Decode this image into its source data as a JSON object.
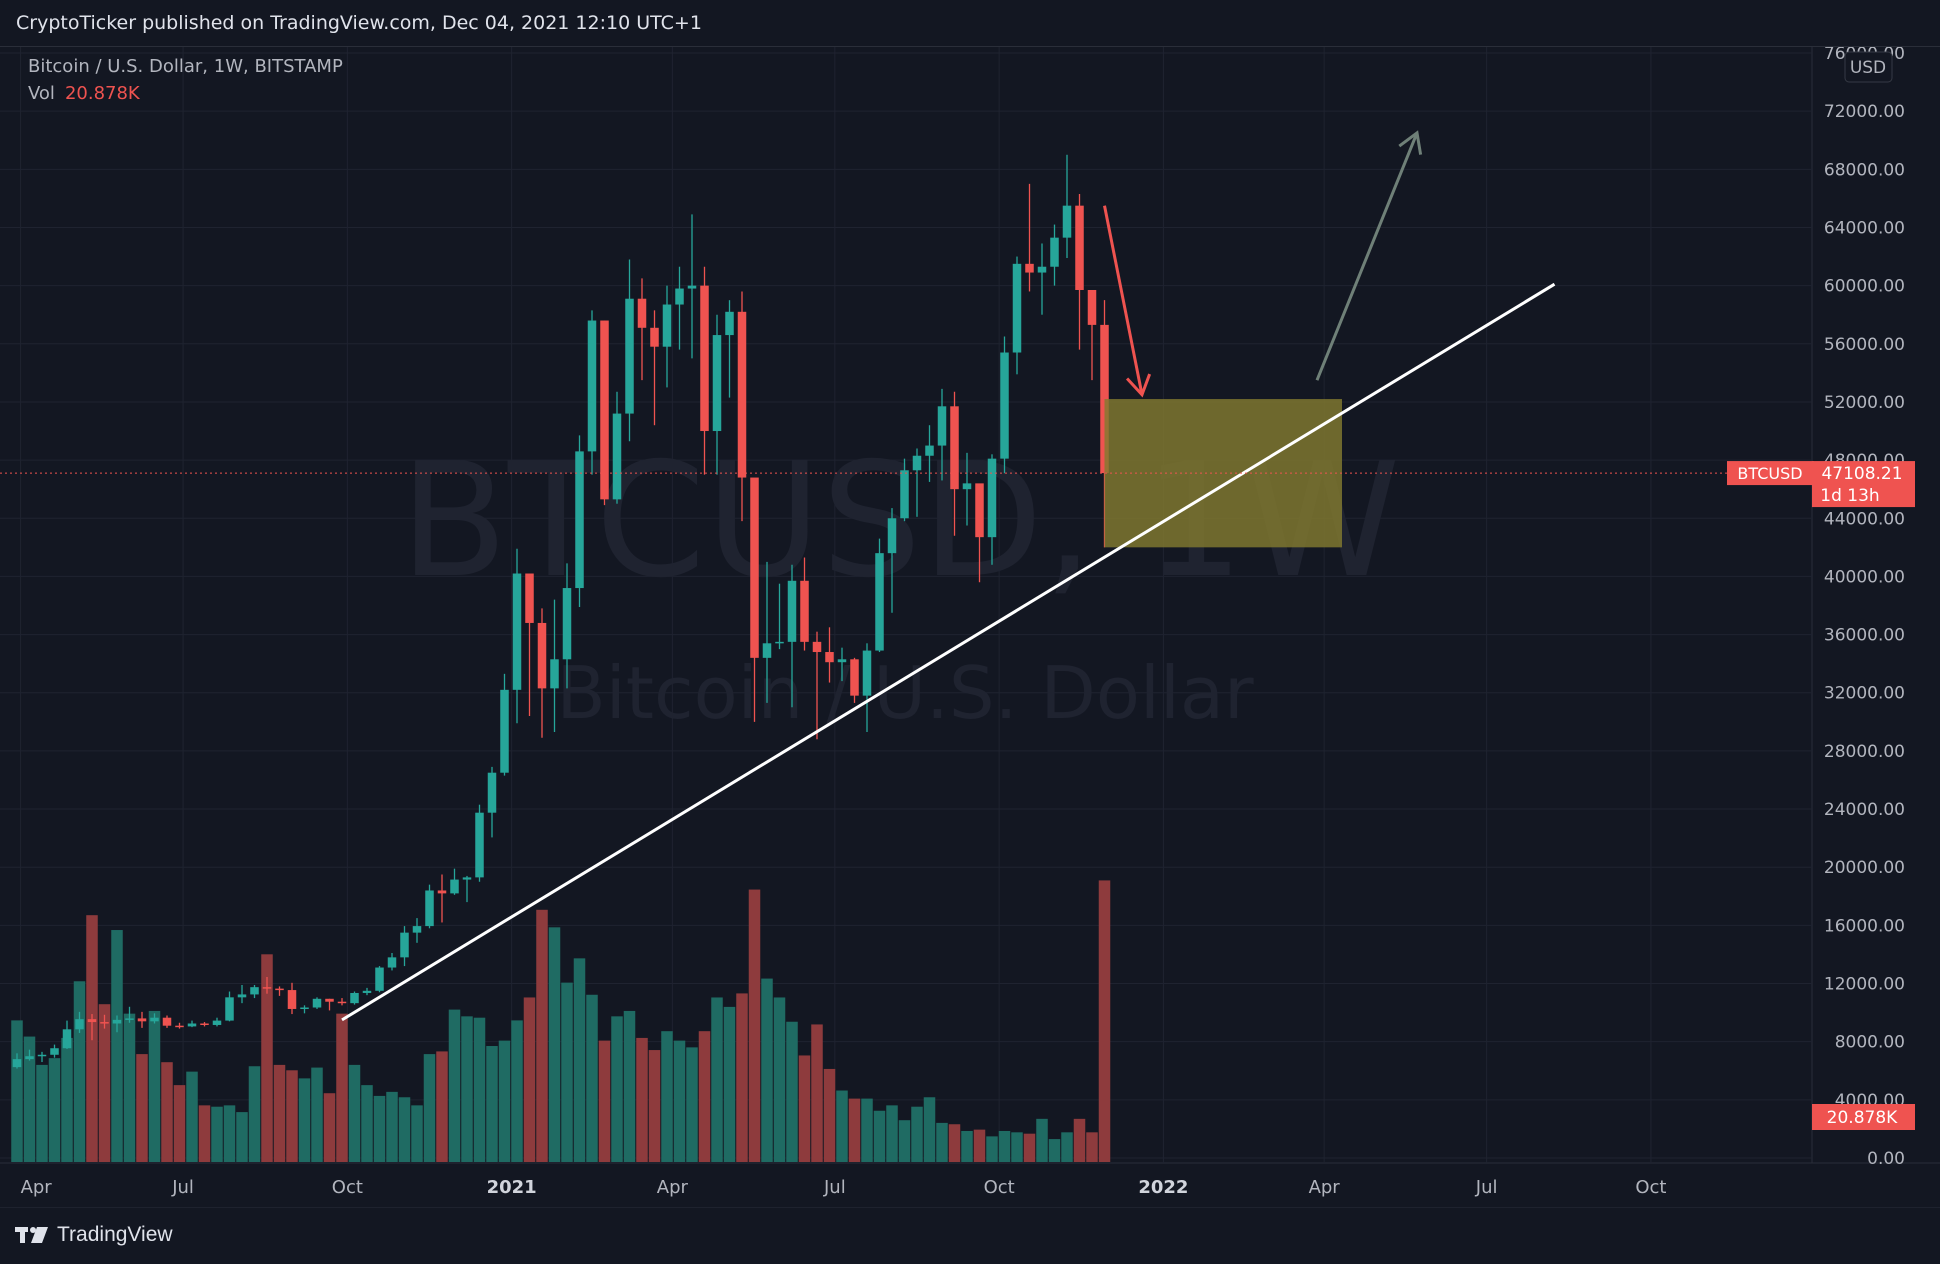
{
  "header": {
    "published_line": "CryptoTicker published on TradingView.com, Dec 04, 2021 12:10 UTC+1"
  },
  "legend": {
    "title": "Bitcoin / U.S. Dollar, 1W, BITSTAMP",
    "vol_label": "Vol",
    "vol_value": "20.878K"
  },
  "watermark": {
    "symbol": "BTCUSD, 1W",
    "name": "Bitcoin / U.S. Dollar"
  },
  "price_scale": {
    "currency": "USD",
    "ticks": [
      "76000.00",
      "72000.00",
      "68000.00",
      "64000.00",
      "60000.00",
      "56000.00",
      "52000.00",
      "48000.00",
      "44000.00",
      "40000.00",
      "36000.00",
      "32000.00",
      "28000.00",
      "24000.00",
      "20000.00",
      "16000.00",
      "12000.00",
      "8000.00",
      "4000.00",
      "0.00"
    ]
  },
  "time_scale": {
    "labels": [
      {
        "text": "Apr",
        "bold": false
      },
      {
        "text": "Jul",
        "bold": false
      },
      {
        "text": "Oct",
        "bold": false
      },
      {
        "text": "2021",
        "bold": true
      },
      {
        "text": "Apr",
        "bold": false
      },
      {
        "text": "Jul",
        "bold": false
      },
      {
        "text": "Oct",
        "bold": false
      },
      {
        "text": "2022",
        "bold": true
      },
      {
        "text": "Apr",
        "bold": false
      },
      {
        "text": "Jul",
        "bold": false
      },
      {
        "text": "Oct",
        "bold": false
      }
    ]
  },
  "last_price": {
    "symbol": "BTCUSD",
    "price": "47108.21",
    "countdown": "1d 13h",
    "volume": "20.878K"
  },
  "footer": {
    "brand": "TradingView"
  },
  "colors": {
    "up": "#26a69a",
    "down": "#ef5350",
    "vol_up": "#1f6b63",
    "vol_down": "#8e3b3d",
    "background": "#131722",
    "grid": "#1f2330",
    "zone": "#827a2f",
    "trendline": "#ffffff",
    "arrow_down": "#ef5350",
    "arrow_up": "#6f8078"
  },
  "chart_data": {
    "type": "candlestick",
    "symbol": "BTCUSD",
    "timeframe": "1W",
    "exchange": "BITSTAMP",
    "x_range": [
      "2020-03-30",
      "2022-11-21"
    ],
    "ylim": [
      0,
      76000
    ],
    "grid": true,
    "candles": [
      {
        "date": "2020-03-30",
        "open": 6250,
        "high": 7200,
        "low": 6150,
        "close": 6800,
        "volume": 10500
      },
      {
        "date": "2020-04-06",
        "open": 6800,
        "high": 7450,
        "low": 6700,
        "close": 7000,
        "volume": 9300
      },
      {
        "date": "2020-04-13",
        "open": 7000,
        "high": 7300,
        "low": 6600,
        "close": 7100,
        "volume": 7200
      },
      {
        "date": "2020-04-20",
        "open": 7100,
        "high": 7800,
        "low": 6900,
        "close": 7550,
        "volume": 7700
      },
      {
        "date": "2020-04-27",
        "open": 7550,
        "high": 9450,
        "low": 7500,
        "close": 8850,
        "volume": 9200
      },
      {
        "date": "2020-05-04",
        "open": 8850,
        "high": 10050,
        "low": 8600,
        "close": 9550,
        "volume": 13400
      },
      {
        "date": "2020-05-11",
        "open": 9550,
        "high": 9900,
        "low": 8100,
        "close": 9350,
        "volume": 18300
      },
      {
        "date": "2020-05-18",
        "open": 9350,
        "high": 9850,
        "low": 8900,
        "close": 9250,
        "volume": 11700
      },
      {
        "date": "2020-05-25",
        "open": 9250,
        "high": 9800,
        "low": 8650,
        "close": 9500,
        "volume": 17200
      },
      {
        "date": "2020-06-01",
        "open": 9500,
        "high": 10400,
        "low": 9300,
        "close": 9600,
        "volume": 11000
      },
      {
        "date": "2020-06-08",
        "open": 9600,
        "high": 10050,
        "low": 8950,
        "close": 9400,
        "volume": 8000
      },
      {
        "date": "2020-06-15",
        "open": 9400,
        "high": 9950,
        "low": 9250,
        "close": 9650,
        "volume": 11200
      },
      {
        "date": "2020-06-22",
        "open": 9650,
        "high": 9800,
        "low": 8950,
        "close": 9100,
        "volume": 7400
      },
      {
        "date": "2020-06-29",
        "open": 9100,
        "high": 9300,
        "low": 8900,
        "close": 9050,
        "volume": 5700
      },
      {
        "date": "2020-07-06",
        "open": 9050,
        "high": 9450,
        "low": 9000,
        "close": 9250,
        "volume": 6700
      },
      {
        "date": "2020-07-13",
        "open": 9250,
        "high": 9350,
        "low": 9050,
        "close": 9150,
        "volume": 4200
      },
      {
        "date": "2020-07-20",
        "open": 9150,
        "high": 9650,
        "low": 9050,
        "close": 9450,
        "volume": 4100
      },
      {
        "date": "2020-07-27",
        "open": 9450,
        "high": 11450,
        "low": 9400,
        "close": 11050,
        "volume": 4200
      },
      {
        "date": "2020-08-03",
        "open": 11050,
        "high": 11900,
        "low": 10650,
        "close": 11250,
        "volume": 3700
      },
      {
        "date": "2020-08-10",
        "open": 11250,
        "high": 11900,
        "low": 11000,
        "close": 11750,
        "volume": 7100
      },
      {
        "date": "2020-08-17",
        "open": 11750,
        "high": 12450,
        "low": 11300,
        "close": 11650,
        "volume": 15400
      },
      {
        "date": "2020-08-24",
        "open": 11650,
        "high": 11800,
        "low": 11150,
        "close": 11550,
        "volume": 7200
      },
      {
        "date": "2020-08-31",
        "open": 11550,
        "high": 12050,
        "low": 9900,
        "close": 10250,
        "volume": 6800
      },
      {
        "date": "2020-09-07",
        "open": 10250,
        "high": 10500,
        "low": 9950,
        "close": 10350,
        "volume": 6200
      },
      {
        "date": "2020-09-14",
        "open": 10350,
        "high": 11050,
        "low": 10250,
        "close": 10950,
        "volume": 7000
      },
      {
        "date": "2020-09-21",
        "open": 10950,
        "high": 10950,
        "low": 10150,
        "close": 10750,
        "volume": 5100
      },
      {
        "date": "2020-09-28",
        "open": 10750,
        "high": 11000,
        "low": 10500,
        "close": 10650,
        "volume": 11000
      },
      {
        "date": "2020-10-05",
        "open": 10650,
        "high": 11450,
        "low": 10550,
        "close": 11350,
        "volume": 7200
      },
      {
        "date": "2020-10-12",
        "open": 11350,
        "high": 11700,
        "low": 11200,
        "close": 11500,
        "volume": 5700
      },
      {
        "date": "2020-10-19",
        "open": 11500,
        "high": 13200,
        "low": 11400,
        "close": 13100,
        "volume": 4900
      },
      {
        "date": "2020-10-26",
        "open": 13100,
        "high": 14100,
        "low": 12900,
        "close": 13800,
        "volume": 5200
      },
      {
        "date": "2020-11-02",
        "open": 13800,
        "high": 15950,
        "low": 13200,
        "close": 15500,
        "volume": 4800
      },
      {
        "date": "2020-11-09",
        "open": 15500,
        "high": 16500,
        "low": 14800,
        "close": 15950,
        "volume": 4200
      },
      {
        "date": "2020-11-16",
        "open": 15950,
        "high": 18800,
        "low": 15800,
        "close": 18400,
        "volume": 8000
      },
      {
        "date": "2020-11-23",
        "open": 18400,
        "high": 19500,
        "low": 16200,
        "close": 18200,
        "volume": 8200
      },
      {
        "date": "2020-11-30",
        "open": 18200,
        "high": 19900,
        "low": 18100,
        "close": 19150,
        "volume": 11300
      },
      {
        "date": "2020-12-07",
        "open": 19150,
        "high": 19400,
        "low": 17600,
        "close": 19300,
        "volume": 10800
      },
      {
        "date": "2020-12-14",
        "open": 19300,
        "high": 24300,
        "low": 19000,
        "close": 23750,
        "volume": 10700
      },
      {
        "date": "2020-12-21",
        "open": 23750,
        "high": 26900,
        "low": 22050,
        "close": 26500,
        "volume": 8600
      },
      {
        "date": "2020-12-28",
        "open": 26500,
        "high": 33300,
        "low": 26300,
        "close": 32200,
        "volume": 9000
      },
      {
        "date": "2021-01-04",
        "open": 32200,
        "high": 41900,
        "low": 29900,
        "close": 40200,
        "volume": 10500
      },
      {
        "date": "2021-01-11",
        "open": 40200,
        "high": 40150,
        "low": 30400,
        "close": 36800,
        "volume": 12200
      },
      {
        "date": "2021-01-18",
        "open": 36800,
        "high": 37800,
        "low": 28900,
        "close": 32300,
        "volume": 18700
      },
      {
        "date": "2021-01-25",
        "open": 32300,
        "high": 38400,
        "low": 29300,
        "close": 34300,
        "volume": 17400
      },
      {
        "date": "2021-02-01",
        "open": 34300,
        "high": 40900,
        "low": 32300,
        "close": 39200,
        "volume": 13300
      },
      {
        "date": "2021-02-08",
        "open": 39200,
        "high": 49700,
        "low": 37900,
        "close": 48600,
        "volume": 15100
      },
      {
        "date": "2021-02-15",
        "open": 48600,
        "high": 58300,
        "low": 47000,
        "close": 57600,
        "volume": 12400
      },
      {
        "date": "2021-02-22",
        "open": 57600,
        "high": 57600,
        "low": 44900,
        "close": 45300,
        "volume": 9000
      },
      {
        "date": "2021-03-01",
        "open": 45300,
        "high": 52700,
        "low": 45000,
        "close": 51200,
        "volume": 10800
      },
      {
        "date": "2021-03-08",
        "open": 51200,
        "high": 61800,
        "low": 49300,
        "close": 59100,
        "volume": 11200
      },
      {
        "date": "2021-03-15",
        "open": 59100,
        "high": 60500,
        "low": 53500,
        "close": 57100,
        "volume": 9200
      },
      {
        "date": "2021-03-22",
        "open": 57100,
        "high": 58300,
        "low": 50400,
        "close": 55800,
        "volume": 8300
      },
      {
        "date": "2021-03-29",
        "open": 55800,
        "high": 60000,
        "low": 53000,
        "close": 58700,
        "volume": 9700
      },
      {
        "date": "2021-04-05",
        "open": 58700,
        "high": 61300,
        "low": 55600,
        "close": 59800,
        "volume": 9000
      },
      {
        "date": "2021-04-12",
        "open": 59800,
        "high": 64900,
        "low": 55000,
        "close": 60000,
        "volume": 8500
      },
      {
        "date": "2021-04-19",
        "open": 60000,
        "high": 61300,
        "low": 47000,
        "close": 50000,
        "volume": 9700
      },
      {
        "date": "2021-04-26",
        "open": 50000,
        "high": 58000,
        "low": 47000,
        "close": 56600,
        "volume": 12200
      },
      {
        "date": "2021-05-03",
        "open": 56600,
        "high": 59000,
        "low": 52300,
        "close": 58200,
        "volume": 11500
      },
      {
        "date": "2021-05-10",
        "open": 58200,
        "high": 59600,
        "low": 43800,
        "close": 46800,
        "volume": 12500
      },
      {
        "date": "2021-05-17",
        "open": 46800,
        "high": 46300,
        "low": 30000,
        "close": 34400,
        "volume": 20200
      },
      {
        "date": "2021-05-24",
        "open": 34400,
        "high": 41000,
        "low": 31300,
        "close": 35400,
        "volume": 13600
      },
      {
        "date": "2021-05-31",
        "open": 35400,
        "high": 39500,
        "low": 35000,
        "close": 35500,
        "volume": 12200
      },
      {
        "date": "2021-06-07",
        "open": 35500,
        "high": 40800,
        "low": 31000,
        "close": 39700,
        "volume": 10400
      },
      {
        "date": "2021-06-14",
        "open": 39700,
        "high": 41300,
        "low": 34900,
        "close": 35500,
        "volume": 7900
      },
      {
        "date": "2021-06-21",
        "open": 35500,
        "high": 36200,
        "low": 28800,
        "close": 34800,
        "volume": 10200
      },
      {
        "date": "2021-06-28",
        "open": 34800,
        "high": 36500,
        "low": 32700,
        "close": 34100,
        "volume": 6900
      },
      {
        "date": "2021-07-05",
        "open": 34100,
        "high": 35100,
        "low": 32800,
        "close": 34300,
        "volume": 5300
      },
      {
        "date": "2021-07-12",
        "open": 34300,
        "high": 34400,
        "low": 31300,
        "close": 31800,
        "volume": 4700
      },
      {
        "date": "2021-07-19",
        "open": 31800,
        "high": 35400,
        "low": 29300,
        "close": 34900,
        "volume": 4700
      },
      {
        "date": "2021-07-26",
        "open": 34900,
        "high": 42600,
        "low": 34800,
        "close": 41600,
        "volume": 3800
      },
      {
        "date": "2021-08-02",
        "open": 41600,
        "high": 44700,
        "low": 37500,
        "close": 44000,
        "volume": 4200
      },
      {
        "date": "2021-08-09",
        "open": 44000,
        "high": 48100,
        "low": 43800,
        "close": 47300,
        "volume": 3100
      },
      {
        "date": "2021-08-16",
        "open": 47300,
        "high": 48800,
        "low": 44100,
        "close": 48300,
        "volume": 4100
      },
      {
        "date": "2021-08-23",
        "open": 48300,
        "high": 50400,
        "low": 46500,
        "close": 49000,
        "volume": 4800
      },
      {
        "date": "2021-08-30",
        "open": 49000,
        "high": 52900,
        "low": 46600,
        "close": 51700,
        "volume": 2900
      },
      {
        "date": "2021-09-06",
        "open": 51700,
        "high": 52700,
        "low": 42800,
        "close": 46000,
        "volume": 2800
      },
      {
        "date": "2021-09-13",
        "open": 46000,
        "high": 48500,
        "low": 43500,
        "close": 46400,
        "volume": 2300
      },
      {
        "date": "2021-09-20",
        "open": 46400,
        "high": 46000,
        "low": 39600,
        "close": 42700,
        "volume": 2400
      },
      {
        "date": "2021-09-27",
        "open": 42700,
        "high": 48400,
        "low": 40800,
        "close": 48100,
        "volume": 1900
      },
      {
        "date": "2021-10-04",
        "open": 48100,
        "high": 56500,
        "low": 47100,
        "close": 55400,
        "volume": 2300
      },
      {
        "date": "2021-10-11",
        "open": 55400,
        "high": 62000,
        "low": 53900,
        "close": 61500,
        "volume": 2200
      },
      {
        "date": "2021-10-18",
        "open": 61500,
        "high": 67000,
        "low": 59600,
        "close": 60900,
        "volume": 2100
      },
      {
        "date": "2021-10-25",
        "open": 60900,
        "high": 62900,
        "low": 58000,
        "close": 61300,
        "volume": 3200
      },
      {
        "date": "2021-11-01",
        "open": 61300,
        "high": 64200,
        "low": 60000,
        "close": 63300,
        "volume": 1700
      },
      {
        "date": "2021-11-08",
        "open": 63300,
        "high": 69000,
        "low": 61900,
        "close": 65500,
        "volume": 2200
      },
      {
        "date": "2021-11-15",
        "open": 65500,
        "high": 66300,
        "low": 55600,
        "close": 59700,
        "volume": 3200
      },
      {
        "date": "2021-11-22",
        "open": 59700,
        "high": 59500,
        "low": 53500,
        "close": 57300,
        "volume": 2200
      },
      {
        "date": "2021-11-29",
        "open": 57300,
        "high": 59000,
        "low": 42000,
        "close": 47108.21,
        "volume": 20878
      }
    ],
    "drawings": {
      "trendline": {
        "from": {
          "date": "2020-09-28",
          "price": 9500
        },
        "to": {
          "date": "2022-08-08",
          "price": 60100
        }
      },
      "support_zone": {
        "from_date": "2021-11-29",
        "to_date": "2022-04-11",
        "price_low": 42000,
        "price_high": 52200
      },
      "arrow_down": {
        "from": {
          "date": "2021-11-29",
          "price": 65500
        },
        "to": {
          "date": "2021-12-20",
          "price": 52500
        }
      },
      "arrow_up": {
        "from": {
          "date": "2022-03-28",
          "price": 53500
        },
        "to": {
          "date": "2022-05-23",
          "price": 70500
        }
      }
    }
  }
}
